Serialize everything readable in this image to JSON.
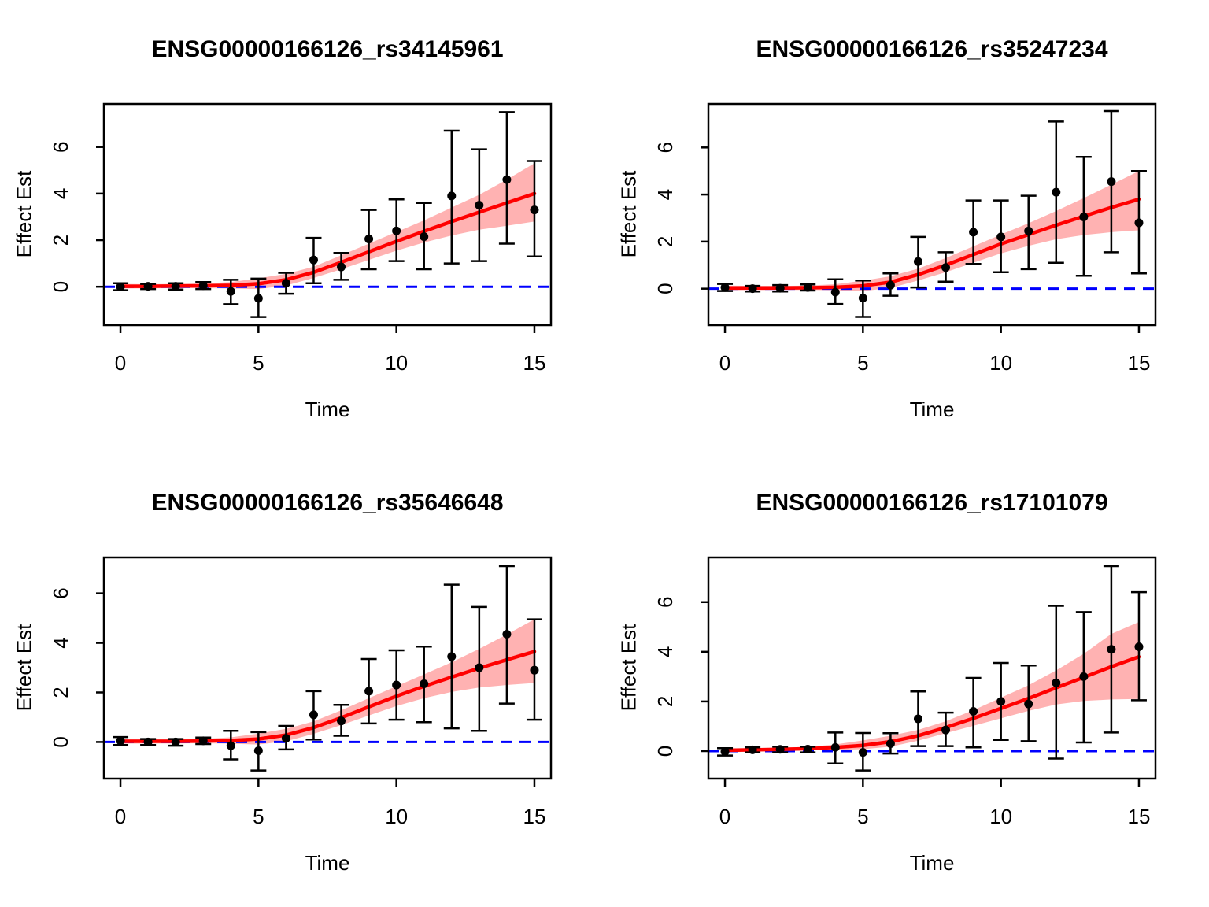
{
  "page": {
    "background": "#FFFFFF"
  },
  "chart_data": [
    {
      "type": "scatter",
      "subtype": "points-errorbars-with-fit-band",
      "title": "ENSG00000166126_rs34145961",
      "xlabel": "Time",
      "ylabel": "Effect Est",
      "xlim": [
        -0.6,
        15.6
      ],
      "ylim": [
        -1.65,
        7.85
      ],
      "xticks": [
        0,
        5,
        10,
        15
      ],
      "yticks": [
        0,
        2,
        4,
        6
      ],
      "grid": false,
      "legend": "none",
      "hline": {
        "y": 0,
        "color": "#0000FF",
        "style": "dashed"
      },
      "x": [
        0,
        1,
        2,
        3,
        4,
        5,
        6,
        7,
        8,
        9,
        10,
        11,
        12,
        13,
        14,
        15
      ],
      "points": [
        0.0,
        0.02,
        0.02,
        0.05,
        -0.2,
        -0.5,
        0.15,
        1.15,
        0.85,
        2.05,
        2.4,
        2.15,
        3.9,
        3.5,
        4.6,
        3.3
      ],
      "err_lo": [
        -0.15,
        -0.1,
        -0.12,
        -0.1,
        -0.75,
        -1.3,
        -0.3,
        0.15,
        0.3,
        0.75,
        1.1,
        0.75,
        1.0,
        1.1,
        1.85,
        1.3
      ],
      "err_hi": [
        0.15,
        0.12,
        0.15,
        0.2,
        0.3,
        0.35,
        0.6,
        2.1,
        1.45,
        3.3,
        3.75,
        3.6,
        6.7,
        5.9,
        7.5,
        5.4
      ],
      "curve": [
        0.02,
        0.02,
        0.03,
        0.04,
        0.06,
        0.13,
        0.3,
        0.62,
        1.05,
        1.5,
        1.95,
        2.38,
        2.8,
        3.2,
        3.6,
        4.0
      ],
      "band_lo": [
        -0.08,
        -0.07,
        -0.06,
        -0.06,
        -0.08,
        -0.1,
        0.05,
        0.38,
        0.75,
        1.15,
        1.55,
        1.9,
        2.2,
        2.45,
        2.62,
        2.8
      ],
      "band_hi": [
        0.12,
        0.11,
        0.12,
        0.14,
        0.2,
        0.36,
        0.55,
        0.86,
        1.35,
        1.85,
        2.35,
        2.85,
        3.4,
        3.95,
        4.6,
        5.3
      ],
      "colors": {
        "point": "#000000",
        "curve": "#FF0000",
        "band_fill": "#FF0000",
        "band_opacity": 0.3,
        "axis": "#000000"
      }
    },
    {
      "type": "scatter",
      "subtype": "points-errorbars-with-fit-band",
      "title": "ENSG00000166126_rs35247234",
      "xlabel": "Time",
      "ylabel": "Effect Est",
      "xlim": [
        -0.6,
        15.6
      ],
      "ylim": [
        -1.55,
        7.85
      ],
      "xticks": [
        0,
        5,
        10,
        15
      ],
      "yticks": [
        0,
        2,
        4,
        6
      ],
      "grid": false,
      "legend": "none",
      "hline": {
        "y": 0,
        "color": "#0000FF",
        "style": "dashed"
      },
      "x": [
        0,
        1,
        2,
        3,
        4,
        5,
        6,
        7,
        8,
        9,
        10,
        11,
        12,
        13,
        14,
        15
      ],
      "points": [
        0.05,
        0.0,
        0.02,
        0.05,
        -0.15,
        -0.4,
        0.15,
        1.15,
        0.9,
        2.4,
        2.2,
        2.45,
        4.1,
        3.05,
        4.55,
        2.8
      ],
      "err_lo": [
        -0.1,
        -0.12,
        -0.12,
        -0.08,
        -0.65,
        -1.2,
        -0.3,
        0.05,
        0.3,
        1.05,
        0.7,
        0.83,
        1.1,
        0.55,
        1.55,
        0.65
      ],
      "err_hi": [
        0.2,
        0.12,
        0.15,
        0.18,
        0.4,
        0.35,
        0.65,
        2.2,
        1.55,
        3.75,
        3.75,
        3.95,
        7.1,
        5.6,
        7.55,
        5.0
      ],
      "curve": [
        0.03,
        0.03,
        0.03,
        0.04,
        0.06,
        0.12,
        0.28,
        0.6,
        1.0,
        1.45,
        1.9,
        2.3,
        2.7,
        3.08,
        3.45,
        3.8
      ],
      "band_lo": [
        -0.07,
        -0.06,
        -0.06,
        -0.05,
        -0.07,
        -0.1,
        0.03,
        0.35,
        0.7,
        1.1,
        1.5,
        1.82,
        2.1,
        2.28,
        2.4,
        2.48
      ],
      "band_hi": [
        0.13,
        0.12,
        0.12,
        0.13,
        0.19,
        0.34,
        0.53,
        0.85,
        1.3,
        1.8,
        2.3,
        2.78,
        3.3,
        3.85,
        4.42,
        5.0
      ],
      "colors": {
        "point": "#000000",
        "curve": "#FF0000",
        "band_fill": "#FF0000",
        "band_opacity": 0.3,
        "axis": "#000000"
      }
    },
    {
      "type": "scatter",
      "subtype": "points-errorbars-with-fit-band",
      "title": "ENSG00000166126_rs35646648",
      "xlabel": "Time",
      "ylabel": "Effect Est",
      "xlim": [
        -0.6,
        15.6
      ],
      "ylim": [
        -1.48,
        7.45
      ],
      "xticks": [
        0,
        5,
        10,
        15
      ],
      "yticks": [
        0,
        2,
        4,
        6
      ],
      "grid": false,
      "legend": "none",
      "hline": {
        "y": 0,
        "color": "#0000FF",
        "style": "dashed"
      },
      "x": [
        0,
        1,
        2,
        3,
        4,
        5,
        6,
        7,
        8,
        9,
        10,
        11,
        12,
        13,
        14,
        15
      ],
      "points": [
        0.05,
        0.0,
        0.0,
        0.05,
        -0.15,
        -0.35,
        0.15,
        1.1,
        0.85,
        2.05,
        2.3,
        2.35,
        3.45,
        3.0,
        4.35,
        2.9
      ],
      "err_lo": [
        -0.12,
        -0.12,
        -0.15,
        -0.08,
        -0.7,
        -1.15,
        -0.3,
        0.1,
        0.25,
        0.75,
        0.9,
        0.8,
        0.55,
        0.45,
        1.55,
        0.9
      ],
      "err_hi": [
        0.2,
        0.12,
        0.12,
        0.18,
        0.45,
        0.4,
        0.65,
        2.05,
        1.5,
        3.35,
        3.7,
        3.85,
        6.35,
        5.45,
        7.1,
        4.95
      ],
      "curve": [
        0.03,
        0.03,
        0.03,
        0.04,
        0.06,
        0.12,
        0.28,
        0.58,
        0.98,
        1.42,
        1.85,
        2.25,
        2.62,
        2.98,
        3.32,
        3.65
      ],
      "band_lo": [
        -0.07,
        -0.06,
        -0.06,
        -0.05,
        -0.07,
        -0.1,
        0.03,
        0.33,
        0.68,
        1.07,
        1.45,
        1.77,
        2.02,
        2.2,
        2.3,
        2.38
      ],
      "band_hi": [
        0.13,
        0.12,
        0.12,
        0.13,
        0.19,
        0.34,
        0.53,
        0.83,
        1.28,
        1.77,
        2.25,
        2.73,
        3.22,
        3.76,
        4.34,
        4.95
      ],
      "colors": {
        "point": "#000000",
        "curve": "#FF0000",
        "band_fill": "#FF0000",
        "band_opacity": 0.3,
        "axis": "#000000"
      }
    },
    {
      "type": "scatter",
      "subtype": "points-errorbars-with-fit-band",
      "title": "ENSG00000166126_rs17101079",
      "xlabel": "Time",
      "ylabel": "Effect Est",
      "xlim": [
        -0.6,
        15.6
      ],
      "ylim": [
        -1.11,
        7.8
      ],
      "xticks": [
        0,
        5,
        10,
        15
      ],
      "yticks": [
        0,
        2,
        4,
        6
      ],
      "grid": false,
      "legend": "none",
      "hline": {
        "y": 0,
        "color": "#0000FF",
        "style": "dashed"
      },
      "x": [
        0,
        1,
        2,
        3,
        4,
        5,
        6,
        7,
        8,
        9,
        10,
        11,
        12,
        13,
        14,
        15
      ],
      "points": [
        -0.02,
        0.05,
        0.07,
        0.08,
        0.15,
        -0.05,
        0.3,
        1.3,
        0.85,
        1.6,
        2.0,
        1.9,
        2.75,
        3.0,
        4.1,
        4.2
      ],
      "err_lo": [
        -0.18,
        -0.05,
        -0.05,
        -0.05,
        -0.5,
        -0.78,
        -0.1,
        0.2,
        0.2,
        0.15,
        0.45,
        0.4,
        -0.3,
        0.35,
        0.75,
        2.05
      ],
      "err_hi": [
        0.12,
        0.15,
        0.18,
        0.18,
        0.75,
        0.73,
        0.72,
        2.4,
        1.55,
        2.95,
        3.55,
        3.45,
        5.85,
        5.6,
        7.45,
        6.4
      ],
      "curve": [
        0.03,
        0.05,
        0.07,
        0.1,
        0.15,
        0.23,
        0.38,
        0.62,
        0.95,
        1.32,
        1.72,
        2.12,
        2.55,
        2.97,
        3.4,
        3.8
      ],
      "band_lo": [
        -0.05,
        -0.02,
        0.01,
        0.03,
        0.05,
        0.08,
        0.18,
        0.42,
        0.72,
        1.02,
        1.32,
        1.62,
        1.88,
        2.02,
        2.08,
        2.1
      ],
      "band_hi": [
        0.11,
        0.12,
        0.14,
        0.17,
        0.27,
        0.43,
        0.62,
        0.85,
        1.2,
        1.65,
        2.15,
        2.65,
        3.25,
        3.92,
        4.72,
        5.2
      ],
      "colors": {
        "point": "#000000",
        "curve": "#FF0000",
        "band_fill": "#FF0000",
        "band_opacity": 0.3,
        "axis": "#000000"
      }
    }
  ]
}
